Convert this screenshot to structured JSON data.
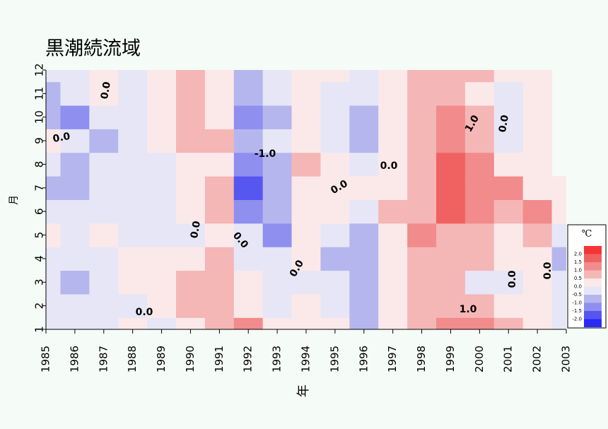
{
  "chart_data": {
    "type": "heatmap",
    "title": "黒潮続流域",
    "x_label": "年",
    "y_label": "月",
    "x": [
      1985,
      1986,
      1987,
      1988,
      1989,
      1990,
      1991,
      1992,
      1993,
      1994,
      1995,
      1996,
      1997,
      1998,
      1999,
      2000,
      2001,
      2002,
      2003
    ],
    "y": [
      1,
      2,
      3,
      4,
      5,
      6,
      7,
      8,
      9,
      10,
      11,
      12
    ],
    "xlim": [
      1985,
      2003
    ],
    "ylim": [
      1,
      12
    ],
    "xticks": [
      1985,
      1986,
      1987,
      1988,
      1989,
      1990,
      1991,
      1992,
      1993,
      1994,
      1995,
      1996,
      1997,
      1998,
      1999,
      2000,
      2001,
      2002,
      2003
    ],
    "yticks": [
      1,
      2,
      3,
      4,
      5,
      6,
      7,
      8,
      9,
      10,
      11,
      12
    ],
    "z": [
      [
        -0.5,
        -0.5,
        -0.1,
        0.1,
        -0.1,
        0.2,
        0.5,
        1.1,
        0.1,
        0,
        0.1,
        -0.6,
        0.3,
        0.7,
        1.2,
        1.3,
        0.5,
        0.3,
        -0.2
      ],
      [
        -0.4,
        -0.5,
        -0.2,
        -0.1,
        0.1,
        0.5,
        0.6,
        0.4,
        -0.2,
        0,
        -0.3,
        -0.7,
        0.3,
        0.5,
        0.6,
        0.6,
        0.3,
        0.1,
        -0.3
      ],
      [
        -0.4,
        -0.8,
        -0.3,
        0.2,
        0.4,
        0.5,
        0.6,
        0.4,
        -0.1,
        -0.2,
        -0.4,
        -0.6,
        0.2,
        0.5,
        0.6,
        -0.1,
        -0.3,
        0.1,
        -0.4
      ],
      [
        -0.1,
        -0.4,
        -0.2,
        0.1,
        0.2,
        0.2,
        0.5,
        -0.1,
        -0.5,
        0,
        -0.6,
        -0.7,
        0.2,
        0.6,
        0.5,
        0.6,
        0.3,
        0.2,
        -0.6
      ],
      [
        0.2,
        -0.3,
        0.1,
        -0.2,
        -0.2,
        -0.1,
        0.3,
        -0.5,
        -1.1,
        0.1,
        -0.5,
        -1.0,
        0.3,
        1.1,
        0.8,
        0.6,
        0.3,
        0.5,
        -0.3
      ],
      [
        -0.3,
        -0.3,
        -0.3,
        -0.3,
        -0.5,
        0.2,
        0.6,
        -1.2,
        -0.6,
        0.2,
        0.1,
        -0.5,
        0.5,
        0.7,
        1.5,
        1.0,
        0.7,
        1.1,
        0.1
      ],
      [
        -0.6,
        -0.6,
        -0.5,
        -0.2,
        -0.5,
        0.1,
        0.5,
        -1.7,
        -0.8,
        0.3,
        0.3,
        0,
        0.1,
        0.8,
        1.8,
        1.4,
        1.1,
        0.3,
        0.2
      ],
      [
        -0.3,
        -1.0,
        -0.3,
        -0.2,
        -0.1,
        0.3,
        0.3,
        -1.5,
        -0.6,
        0.6,
        0.1,
        -0.3,
        0.1,
        0.6,
        1.6,
        1.2,
        0.3,
        0.3,
        null
      ],
      [
        0.1,
        -0.4,
        -0.6,
        -0.2,
        0.1,
        0.6,
        0.5,
        -0.8,
        -0.5,
        0.2,
        -0.3,
        -0.7,
        0.1,
        0.6,
        1.3,
        0.7,
        -0.4,
        0.1,
        null
      ],
      [
        -0.6,
        -1.1,
        -0.3,
        -0.2,
        0.1,
        0.6,
        0.4,
        -1.2,
        -0.6,
        0.3,
        -0.3,
        -0.8,
        0.1,
        0.7,
        1.2,
        0.6,
        -0.3,
        0.1,
        null
      ],
      [
        -0.6,
        -0.5,
        0.1,
        -0.5,
        0.1,
        0.7,
        0.3,
        -0.8,
        -0.5,
        0.2,
        -0.2,
        -0.4,
        0.1,
        0.6,
        0.8,
        0.4,
        -0.2,
        0.1,
        null
      ],
      [
        -0.5,
        -0.3,
        0,
        -0.3,
        0.2,
        0.8,
        0.3,
        -0.7,
        -0.3,
        0.2,
        0.2,
        -0.3,
        0.2,
        0.6,
        0.7,
        0.5,
        0.3,
        0.2,
        null
      ]
    ],
    "legend_title": "℃",
    "levels": [
      {
        "value": -2,
        "label": "-2.0"
      },
      {
        "value": -1.5,
        "label": "-1.5"
      },
      {
        "value": -1,
        "label": "-1.0"
      },
      {
        "value": -0.5,
        "label": "-0.5"
      },
      {
        "value": 0,
        "label": "0.0"
      },
      {
        "value": 0.5,
        "label": "0.5"
      },
      {
        "value": 1,
        "label": "1.0"
      },
      {
        "value": 1.5,
        "label": "1.5"
      },
      {
        "value": 2,
        "label": "2.0"
      }
    ],
    "colors": [
      "#2a2af5",
      "#5656f0",
      "#8f8ff0",
      "#b6b6ee",
      "#e6e6f6",
      "#fbe9e9",
      "#f5b6b6",
      "#f28b8b",
      "#f06262",
      "#f53535"
    ],
    "annotations": [
      "0.0",
      "0.0",
      "-1.0",
      "0.0",
      "0.0",
      "1.0",
      "0.0",
      "1.0",
      "0.0",
      "0.0",
      "0.0",
      "0.0",
      "0.0",
      "0.0"
    ]
  }
}
